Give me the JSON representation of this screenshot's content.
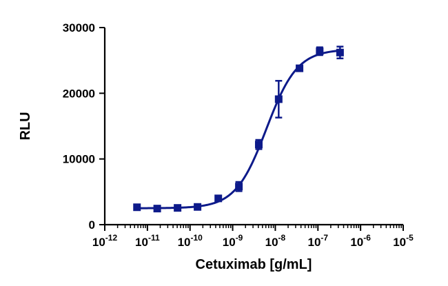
{
  "chart_data": {
    "type": "scatter",
    "xlabel": "Cetuximab [g/mL]",
    "ylabel": "RLU",
    "x_scale": "log",
    "xlim": [
      1e-12,
      1e-05
    ],
    "ylim": [
      0,
      30000
    ],
    "x_tick_labels": [
      {
        "base": "10",
        "exp": "-12"
      },
      {
        "base": "10",
        "exp": "-11"
      },
      {
        "base": "10",
        "exp": "-10"
      },
      {
        "base": "10",
        "exp": "-9"
      },
      {
        "base": "10",
        "exp": "-8"
      },
      {
        "base": "10",
        "exp": "-7"
      },
      {
        "base": "10",
        "exp": "-6"
      },
      {
        "base": "10",
        "exp": "-5"
      }
    ],
    "y_ticks": [
      "0",
      "10000",
      "20000",
      "30000"
    ],
    "points": [
      {
        "x": 5.7e-12,
        "y": 2650,
        "err": 150
      },
      {
        "x": 1.7e-11,
        "y": 2450,
        "err": 150
      },
      {
        "x": 5.1e-11,
        "y": 2550,
        "err": 150
      },
      {
        "x": 1.5e-10,
        "y": 2700,
        "err": 150
      },
      {
        "x": 4.6e-10,
        "y": 4000,
        "err": 250
      },
      {
        "x": 1.4e-09,
        "y": 5800,
        "err": 700
      },
      {
        "x": 4.1e-09,
        "y": 12200,
        "err": 700
      },
      {
        "x": 1.2e-08,
        "y": 19100,
        "err": 2800
      },
      {
        "x": 3.7e-08,
        "y": 23800,
        "err": 400
      },
      {
        "x": 1.1e-07,
        "y": 26400,
        "err": 600
      },
      {
        "x": 3.3e-07,
        "y": 26200,
        "err": 900
      }
    ],
    "curve": {
      "bottom": 2500,
      "top": 26700,
      "ec50": 6.2e-09,
      "hill": 1.2
    },
    "color": "#0d1a8a",
    "grid": false,
    "legend": "none"
  }
}
